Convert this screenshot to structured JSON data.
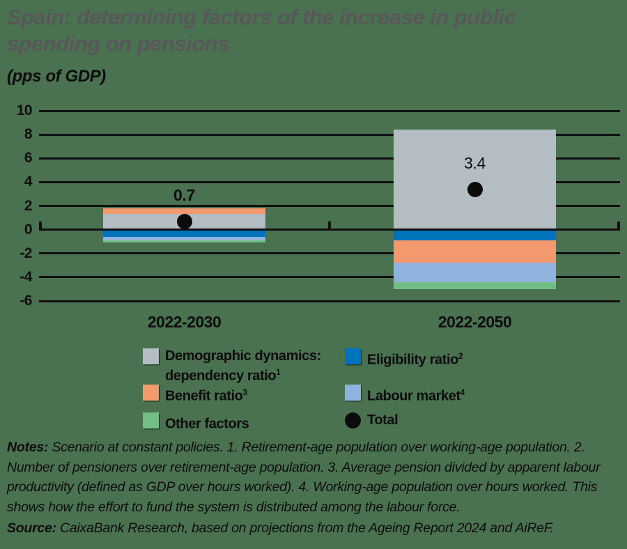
{
  "header": {
    "title_line1": "Spain: determining factors of the increase in public",
    "title_line2": "spending on pensions",
    "subtitle": "(pps of GDP)"
  },
  "chart_data": {
    "type": "bar",
    "stacked": true,
    "title": "Spain: determining factors of the increase in public spending on pensions",
    "ylabel": "pps of GDP",
    "categories": [
      "2022-2030",
      "2022-2050"
    ],
    "series": [
      {
        "name": "Demographic dynamics: dependency ratio",
        "sup": "1",
        "color": "#b4bdc1",
        "values": [
          1.3,
          8.4
        ]
      },
      {
        "name": "Eligibility ratio",
        "sup": "2",
        "color": "#0073bd",
        "values": [
          -0.6,
          -0.9
        ]
      },
      {
        "name": "Benefit ratio",
        "sup": "3",
        "color": "#f29a6d",
        "values": [
          0.5,
          -1.9
        ]
      },
      {
        "name": "Labour market",
        "sup": "4",
        "color": "#8fb2df",
        "values": [
          -0.3,
          -1.6
        ]
      },
      {
        "name": "Other factors",
        "sup": "",
        "color": "#72bf86",
        "values": [
          -0.2,
          -0.6
        ]
      }
    ],
    "total_series": {
      "name": "Total",
      "color": "#0b0b0b",
      "values": [
        0.7,
        3.4
      ],
      "labels": [
        "0.7",
        "3.4"
      ]
    },
    "y_axis": {
      "ymin": -6,
      "ymax": 10,
      "step": 2,
      "ticks": [
        "10",
        "8",
        "6",
        "4",
        "2",
        "0",
        "-2",
        "-4",
        "-6"
      ],
      "tick_values": [
        10,
        8,
        6,
        4,
        2,
        0,
        -2,
        -4,
        -6
      ]
    },
    "grid": "horizontal-black",
    "legend_position": "bottom"
  },
  "legend": {
    "items": [
      {
        "label": "Demographic dynamics: dependency ratio",
        "sup": "1",
        "color": "#b4bdc1",
        "shape": "square"
      },
      {
        "label": "Eligibility ratio",
        "sup": "2",
        "color": "#0073bd",
        "shape": "square"
      },
      {
        "label": "Benefit ratio",
        "sup": "3",
        "color": "#f29a6d",
        "shape": "square"
      },
      {
        "label": "Labour market",
        "sup": "4",
        "color": "#8fb2df",
        "shape": "square"
      },
      {
        "label": "Other factors",
        "sup": "",
        "color": "#72bf86",
        "shape": "square"
      },
      {
        "label": "Total",
        "sup": "",
        "color": "#0b0b0b",
        "shape": "circle"
      }
    ]
  },
  "footer": {
    "notes_label": "Notes:",
    "notes_text": " Scenario at constant policies. 1. Retirement-age population over working-age population. 2. Number of pensioners over retirement-age population. 3. Average pension divided by apparent labour productivity (defined as GDP over hours worked). 4. Working-age population over hours worked. This shows how the effort to fund the system is distributed among the labour force.",
    "source_label": "Source:",
    "source_text": " CaixaBank Research, based on projections from the Ageing Report 2024 and AiReF."
  },
  "colors": {
    "background": "#4a7150",
    "title": "#58585a",
    "text": "#0d0d0d",
    "grid": "#101010"
  }
}
